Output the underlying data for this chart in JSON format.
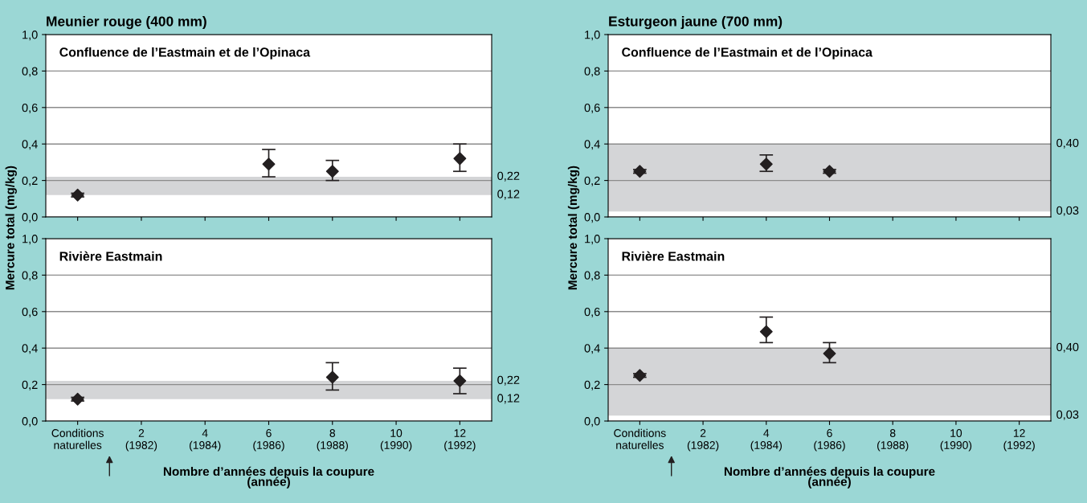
{
  "chart_data": [
    {
      "type": "scatter",
      "title": "Meunier rouge (400 mm)",
      "subtitle": "Confluence de l’Eastmain et de l’Opinaca",
      "ylabel": "Mercure total (mg/kg)",
      "categories": [
        null,
        null,
        null,
        null,
        null,
        null,
        null
      ],
      "ylim": [
        0,
        1
      ],
      "yticks": [
        {
          "value": 0,
          "label": "0,0"
        },
        {
          "value": 0.2,
          "label": "0,2"
        },
        {
          "value": 0.4,
          "label": "0,4"
        },
        {
          "value": 0.6,
          "label": "0,6"
        },
        {
          "value": 0.8,
          "label": "0,8"
        },
        {
          "value": 1,
          "label": "1,0"
        }
      ],
      "grid": "y",
      "marker": "diamond",
      "tick_labels": "y",
      "series": [
        {
          "color": "#231f20",
          "values": [
            0.12,
            null,
            null,
            0.29,
            0.25,
            null,
            0.32
          ],
          "errors": [
            [
              0.11,
              0.13
            ],
            null,
            null,
            [
              0.22,
              0.37
            ],
            [
              0.2,
              0.31
            ],
            null,
            [
              0.25,
              0.4
            ]
          ]
        }
      ],
      "bands": [
        {
          "axis": "y",
          "from": 0.12,
          "to": 0.22,
          "color": "#d4d5d7"
        }
      ],
      "annotations": [
        "0,22",
        "0,12"
      ]
    },
    {
      "type": "scatter",
      "subtitle": "Rivière Eastmain",
      "xlabel": "Nombre d’années depuis la coupure\n(année)",
      "categories": [
        "Conditions\nnaturelles",
        "2\n(1982)",
        "4\n(1984)",
        "6\n(1986)",
        "8\n(1988)",
        "10\n(1990)",
        "12\n(1992)"
      ],
      "ylim": [
        0,
        1
      ],
      "yticks": [
        {
          "value": 0,
          "label": "0,0"
        },
        {
          "value": 0.2,
          "label": "0,2"
        },
        {
          "value": 0.4,
          "label": "0,4"
        },
        {
          "value": 0.6,
          "label": "0,6"
        },
        {
          "value": 0.8,
          "label": "0,8"
        },
        {
          "value": 1,
          "label": "1,0"
        }
      ],
      "grid": "y",
      "marker": "diamond",
      "series": [
        {
          "color": "#231f20",
          "values": [
            0.12,
            null,
            null,
            null,
            0.24,
            null,
            0.22
          ],
          "errors": [
            [
              0.11,
              0.13
            ],
            null,
            null,
            null,
            [
              0.17,
              0.32
            ],
            null,
            [
              0.15,
              0.29
            ]
          ]
        }
      ],
      "bands": [
        {
          "axis": "y",
          "from": 0.12,
          "to": 0.22,
          "color": "#d4d5d7"
        }
      ],
      "annotations": [
        "0,22",
        "0,12"
      ]
    },
    {
      "type": "scatter",
      "title": "Esturgeon jaune (700 mm)",
      "subtitle": "Confluence de l’Eastmain et de l’Opinaca",
      "ylabel": "Mercure total (mg/kg)",
      "categories": [
        null,
        null,
        null,
        null,
        null,
        null,
        null
      ],
      "ylim": [
        0,
        1
      ],
      "yticks": [
        {
          "value": 0,
          "label": "0,0"
        },
        {
          "value": 0.2,
          "label": "0,2"
        },
        {
          "value": 0.4,
          "label": "0,4"
        },
        {
          "value": 0.6,
          "label": "0,6"
        },
        {
          "value": 0.8,
          "label": "0,8"
        },
        {
          "value": 1,
          "label": "1,0"
        }
      ],
      "grid": "y",
      "marker": "diamond",
      "tick_labels": "y",
      "series": [
        {
          "color": "#231f20",
          "values": [
            0.25,
            null,
            0.29,
            0.25,
            null,
            null,
            null
          ],
          "errors": [
            [
              0.24,
              0.26
            ],
            null,
            [
              0.25,
              0.34
            ],
            [
              0.24,
              0.26
            ],
            null,
            null,
            null
          ]
        }
      ],
      "bands": [
        {
          "axis": "y",
          "from": 0.03,
          "to": 0.4,
          "color": "#d4d5d7"
        }
      ],
      "annotations": [
        "0,40",
        "0,03"
      ]
    },
    {
      "type": "scatter",
      "subtitle": "Rivière Eastmain",
      "xlabel": "Nombre d’années depuis la coupure\n(année)",
      "categories": [
        "Conditions\nnaturelles",
        "2\n(1982)",
        "4\n(1984)",
        "6\n(1986)",
        "8\n(1988)",
        "10\n(1990)",
        "12\n(1992)"
      ],
      "ylim": [
        0,
        1
      ],
      "yticks": [
        {
          "value": 0,
          "label": "0,0"
        },
        {
          "value": 0.2,
          "label": "0,2"
        },
        {
          "value": 0.4,
          "label": "0,4"
        },
        {
          "value": 0.6,
          "label": "0,6"
        },
        {
          "value": 0.8,
          "label": "0,8"
        },
        {
          "value": 1,
          "label": "1,0"
        }
      ],
      "grid": "y",
      "marker": "diamond",
      "series": [
        {
          "color": "#231f20",
          "values": [
            0.25,
            null,
            0.49,
            0.37,
            null,
            null,
            null
          ],
          "errors": [
            [
              0.24,
              0.26
            ],
            null,
            [
              0.43,
              0.57
            ],
            [
              0.32,
              0.43
            ],
            null,
            null,
            null
          ]
        }
      ],
      "bands": [
        {
          "axis": "y",
          "from": 0.03,
          "to": 0.4,
          "color": "#d4d5d7"
        }
      ],
      "annotations": [
        "0,40",
        "0,03"
      ]
    }
  ]
}
